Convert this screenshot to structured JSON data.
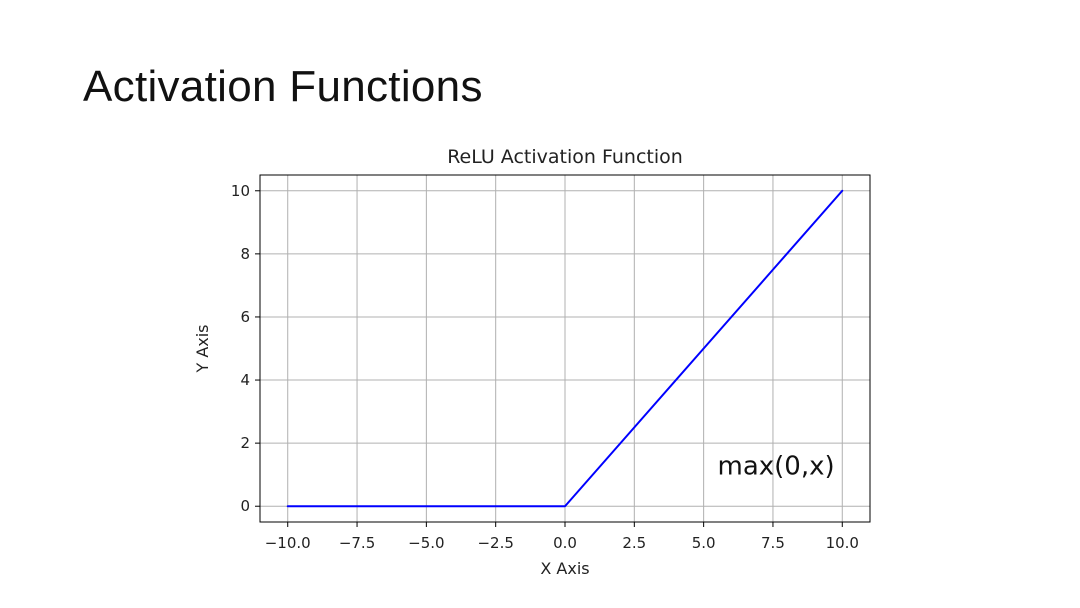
{
  "slide": {
    "title": "Activation Functions"
  },
  "chart_data": {
    "type": "line",
    "title": "ReLU Activation Function",
    "xlabel": "X Axis",
    "ylabel": "Y Axis",
    "xlim": [
      -11,
      11
    ],
    "ylim": [
      -0.5,
      10.5
    ],
    "xticks": [
      -10.0,
      -7.5,
      -5.0,
      -2.5,
      0.0,
      2.5,
      5.0,
      7.5,
      10.0
    ],
    "xtick_labels": [
      "−10.0",
      "−7.5",
      "−5.0",
      "−2.5",
      "0.0",
      "2.5",
      "5.0",
      "7.5",
      "10.0"
    ],
    "yticks": [
      0,
      2,
      4,
      6,
      8,
      10
    ],
    "ytick_labels": [
      "0",
      "2",
      "4",
      "6",
      "8",
      "10"
    ],
    "grid": true,
    "series": [
      {
        "color": "#0000ff",
        "x": [
          -10,
          -7.5,
          -5,
          -2.5,
          0,
          2.5,
          5,
          7.5,
          10
        ],
        "y": [
          0,
          0,
          0,
          0,
          0,
          2.5,
          5,
          7.5,
          10
        ]
      }
    ],
    "annotations": [
      {
        "text": "max(0,x)",
        "x": 5.5,
        "y": 1.0
      }
    ]
  }
}
